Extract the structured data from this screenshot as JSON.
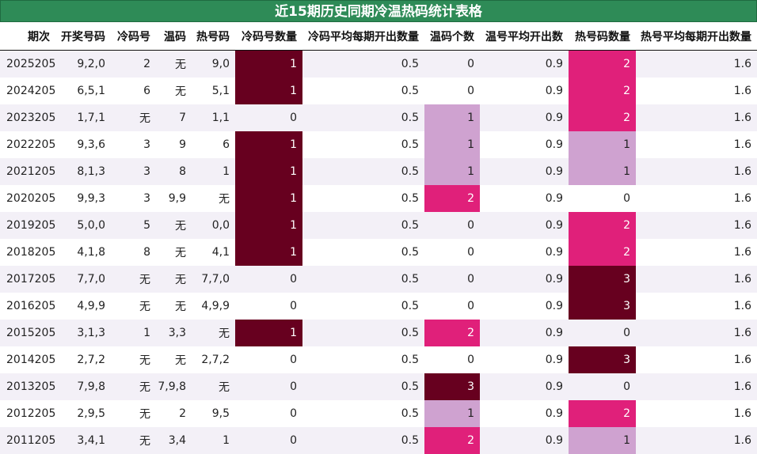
{
  "title": "近15期历史同期冷温热码统计表格",
  "columns": [
    "期次",
    "开奖号码",
    "冷码号",
    "温码",
    "热号码",
    "冷码号数量",
    "冷码平均每期开出数量",
    "温码个数",
    "温号平均开出数",
    "热号码数量",
    "热号平均每期开出数量"
  ],
  "rows": [
    [
      "2025205",
      "9,2,0",
      "2",
      "无",
      "9,0",
      "1",
      "0.5",
      "0",
      "0.9",
      "2",
      "1.6"
    ],
    [
      "2024205",
      "6,5,1",
      "6",
      "无",
      "5,1",
      "1",
      "0.5",
      "0",
      "0.9",
      "2",
      "1.6"
    ],
    [
      "2023205",
      "1,7,1",
      "无",
      "7",
      "1,1",
      "0",
      "0.5",
      "1",
      "0.9",
      "2",
      "1.6"
    ],
    [
      "2022205",
      "9,3,6",
      "3",
      "9",
      "6",
      "1",
      "0.5",
      "1",
      "0.9",
      "1",
      "1.6"
    ],
    [
      "2021205",
      "8,1,3",
      "3",
      "8",
      "1",
      "1",
      "0.5",
      "1",
      "0.9",
      "1",
      "1.6"
    ],
    [
      "2020205",
      "9,9,3",
      "3",
      "9,9",
      "无",
      "1",
      "0.5",
      "2",
      "0.9",
      "0",
      "1.6"
    ],
    [
      "2019205",
      "5,0,0",
      "5",
      "无",
      "0,0",
      "1",
      "0.5",
      "0",
      "0.9",
      "2",
      "1.6"
    ],
    [
      "2018205",
      "4,1,8",
      "8",
      "无",
      "4,1",
      "1",
      "0.5",
      "0",
      "0.9",
      "2",
      "1.6"
    ],
    [
      "2017205",
      "7,7,0",
      "无",
      "无",
      "7,7,0",
      "0",
      "0.5",
      "0",
      "0.9",
      "3",
      "1.6"
    ],
    [
      "2016205",
      "4,9,9",
      "无",
      "无",
      "4,9,9",
      "0",
      "0.5",
      "0",
      "0.9",
      "3",
      "1.6"
    ],
    [
      "2015205",
      "3,1,3",
      "1",
      "3,3",
      "无",
      "1",
      "0.5",
      "2",
      "0.9",
      "0",
      "1.6"
    ],
    [
      "2014205",
      "2,7,2",
      "无",
      "无",
      "2,7,2",
      "0",
      "0.5",
      "0",
      "0.9",
      "3",
      "1.6"
    ],
    [
      "2013205",
      "7,9,8",
      "无",
      "7,9,8",
      "无",
      "0",
      "0.5",
      "3",
      "0.9",
      "0",
      "1.6"
    ],
    [
      "2012205",
      "2,9,5",
      "无",
      "2",
      "9,5",
      "0",
      "0.5",
      "1",
      "0.9",
      "2",
      "1.6"
    ],
    [
      "2011205",
      "3,4,1",
      "无",
      "3,4",
      "1",
      "0",
      "0.5",
      "2",
      "0.9",
      "1",
      "1.6"
    ]
  ],
  "heat_colors": {
    "dark": "#67001f",
    "pink": "#e0207a",
    "light": "#cfa2d0",
    "header": "#2e8b57"
  }
}
